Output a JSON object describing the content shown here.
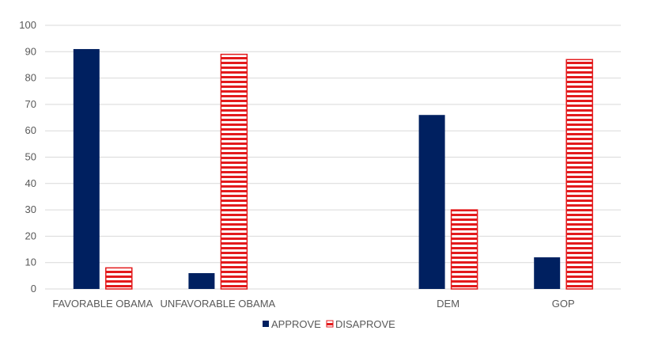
{
  "chart_data": {
    "type": "bar",
    "categories": [
      "FAVORABLE OBAMA",
      "UNFAVORABLE OBAMA",
      "",
      "DEM",
      "GOP"
    ],
    "series": [
      {
        "name": "APPROVE",
        "values": [
          91,
          6,
          null,
          66,
          12
        ],
        "color": "#002060",
        "pattern": "solid"
      },
      {
        "name": "DISAPROVE",
        "values": [
          8,
          89,
          null,
          30,
          87
        ],
        "color": "#e31a1c",
        "pattern": "horizontal-stripes"
      }
    ],
    "ylim": [
      0,
      100
    ],
    "yticks": [
      0,
      10,
      20,
      30,
      40,
      50,
      60,
      70,
      80,
      90,
      100
    ],
    "grid": true,
    "legend_position": "bottom-center",
    "title": "",
    "xlabel": "",
    "ylabel": ""
  }
}
